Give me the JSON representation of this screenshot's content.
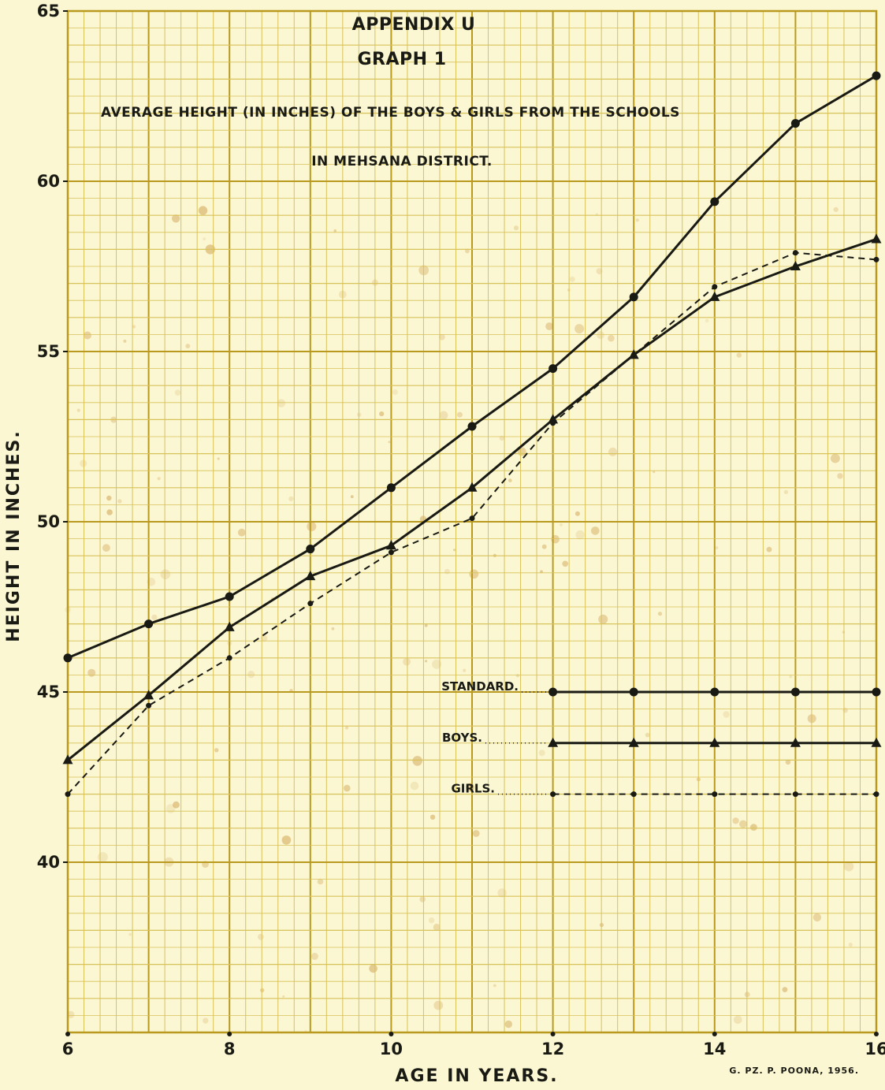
{
  "chart_data": {
    "type": "line",
    "title": "APPENDIX U",
    "title_line2": "GRAPH 1",
    "subtitle": "AVERAGE HEIGHT (IN INCHES) OF THE BOYS & GIRLS FROM THE SCHOOLS",
    "subtitle_line2": "IN MEHSANA DISTRICT.",
    "xlabel": "AGE IN YEARS.",
    "ylabel": "HEIGHT IN INCHES.",
    "xlim": [
      6,
      16
    ],
    "ylim": [
      35,
      65
    ],
    "xticks": [
      6,
      8,
      10,
      12,
      14,
      16
    ],
    "xtick_labels": [
      "6",
      "8",
      "10",
      "12",
      "14",
      "16"
    ],
    "yticks": [
      40,
      45,
      50,
      55,
      60,
      65
    ],
    "ytick_labels": [
      "40",
      "45",
      "50",
      "55",
      "60",
      "65"
    ],
    "grid": true,
    "legend_position": "center-right",
    "imprint": "G. PZ. P. POONA, 1956.",
    "series": [
      {
        "name": "STANDARD.",
        "style": "solid",
        "marker": "circle",
        "color": "#1a1a14",
        "x": [
          6,
          7,
          8,
          9,
          10,
          11,
          12,
          13,
          14,
          15,
          16
        ],
        "y": [
          46.0,
          47.0,
          47.8,
          49.2,
          51.0,
          52.8,
          54.5,
          56.6,
          59.4,
          61.7,
          63.1
        ]
      },
      {
        "name": "BOYS.",
        "style": "solid",
        "marker": "triangle",
        "color": "#1a1a14",
        "x": [
          6,
          7,
          8,
          9,
          10,
          11,
          12,
          13,
          14,
          15,
          16
        ],
        "y": [
          43.0,
          44.9,
          46.9,
          48.4,
          49.3,
          51.0,
          53.0,
          54.9,
          56.6,
          57.5,
          58.3
        ]
      },
      {
        "name": "GIRLS.",
        "style": "dashed",
        "marker": "dot",
        "color": "#1a1a14",
        "x": [
          6,
          7,
          8,
          9,
          10,
          11,
          12,
          13,
          14,
          15,
          16
        ],
        "y": [
          42.0,
          44.6,
          46.0,
          47.6,
          49.1,
          50.1,
          52.9,
          54.9,
          56.9,
          57.9,
          57.7
        ]
      }
    ]
  },
  "colors": {
    "paper": "#fbf7d2",
    "grid_major": "#b99a1e",
    "grid_minor": "#d8c25a",
    "ink": "#1a1a14",
    "stain": "#c48a2c"
  }
}
